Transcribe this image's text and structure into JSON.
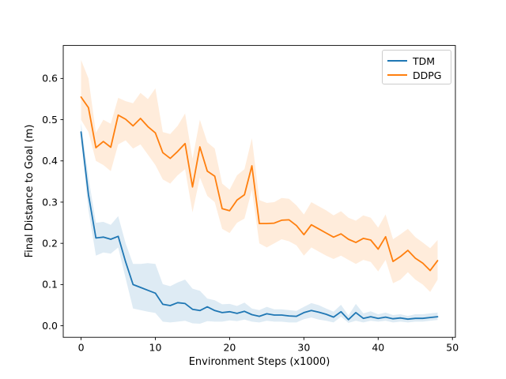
{
  "figure": {
    "background": "#ffffff"
  },
  "legend": {
    "position": "upper right",
    "items": [
      {
        "label": "TDM",
        "color": "#1f77b4"
      },
      {
        "label": "DDPG",
        "color": "#ff7f0e"
      }
    ]
  },
  "chart_data": {
    "type": "line",
    "title": "",
    "xlabel": "Environment Steps (x1000)",
    "ylabel": "Final Distance to Goal (m)",
    "grid": false,
    "legend_position": "upper right",
    "band_alpha": 0.15,
    "xlim": [
      -2.4,
      50.4
    ],
    "ylim": [
      -0.028,
      0.68
    ],
    "x_ticks": [
      {
        "label": "0",
        "v": 0
      },
      {
        "label": "10",
        "v": 10
      },
      {
        "label": "20",
        "v": 20
      },
      {
        "label": "30",
        "v": 30
      },
      {
        "label": "40",
        "v": 40
      },
      {
        "label": "50",
        "v": 50
      }
    ],
    "y_ticks": [
      {
        "label": "0.0",
        "v": 0.0
      },
      {
        "label": "0.1",
        "v": 0.1
      },
      {
        "label": "0.2",
        "v": 0.2
      },
      {
        "label": "0.3",
        "v": 0.3
      },
      {
        "label": "0.4",
        "v": 0.4
      },
      {
        "label": "0.5",
        "v": 0.5
      },
      {
        "label": "0.6",
        "v": 0.6
      }
    ],
    "x": [
      0,
      1,
      2,
      3,
      4,
      5,
      6,
      7,
      8,
      9,
      10,
      11,
      12,
      13,
      14,
      15,
      16,
      17,
      18,
      19,
      20,
      21,
      22,
      23,
      24,
      25,
      26,
      27,
      28,
      29,
      30,
      31,
      32,
      33,
      34,
      35,
      36,
      37,
      38,
      39,
      40,
      41,
      42,
      43,
      44,
      45,
      46,
      47,
      48
    ],
    "series": [
      {
        "name": "TDM",
        "color": "#1f77b4",
        "values": [
          0.47,
          0.318,
          0.213,
          0.215,
          0.21,
          0.217,
          0.155,
          0.1,
          0.093,
          0.086,
          0.079,
          0.052,
          0.049,
          0.056,
          0.054,
          0.04,
          0.037,
          0.046,
          0.037,
          0.032,
          0.034,
          0.03,
          0.035,
          0.027,
          0.023,
          0.029,
          0.026,
          0.026,
          0.024,
          0.023,
          0.032,
          0.037,
          0.033,
          0.028,
          0.021,
          0.034,
          0.015,
          0.032,
          0.018,
          0.022,
          0.018,
          0.021,
          0.017,
          0.019,
          0.016,
          0.018,
          0.018,
          0.02,
          0.022
        ],
        "band_lo": [
          0.45,
          0.28,
          0.17,
          0.178,
          0.175,
          0.19,
          0.115,
          0.042,
          0.038,
          0.034,
          0.031,
          0.01,
          0.008,
          0.01,
          0.012,
          0.006,
          0.005,
          0.011,
          0.01,
          0.01,
          0.013,
          0.011,
          0.015,
          0.01,
          0.008,
          0.012,
          0.01,
          0.01,
          0.008,
          0.008,
          0.016,
          0.02,
          0.015,
          0.012,
          0.008,
          0.022,
          0.007,
          0.012,
          0.008,
          0.012,
          0.01,
          0.012,
          0.008,
          0.01,
          0.008,
          0.01,
          0.01,
          0.012,
          0.014
        ],
        "band_hi": [
          0.492,
          0.36,
          0.25,
          0.252,
          0.245,
          0.266,
          0.2,
          0.15,
          0.15,
          0.152,
          0.15,
          0.101,
          0.096,
          0.105,
          0.112,
          0.09,
          0.085,
          0.066,
          0.062,
          0.052,
          0.053,
          0.048,
          0.056,
          0.042,
          0.038,
          0.046,
          0.04,
          0.04,
          0.038,
          0.036,
          0.046,
          0.055,
          0.05,
          0.042,
          0.034,
          0.051,
          0.025,
          0.053,
          0.03,
          0.035,
          0.028,
          0.032,
          0.026,
          0.028,
          0.024,
          0.028,
          0.028,
          0.03,
          0.032
        ]
      },
      {
        "name": "DDPG",
        "color": "#ff7f0e",
        "values": [
          0.555,
          0.529,
          0.432,
          0.447,
          0.433,
          0.511,
          0.501,
          0.485,
          0.503,
          0.483,
          0.468,
          0.42,
          0.406,
          0.423,
          0.442,
          0.337,
          0.434,
          0.375,
          0.363,
          0.284,
          0.279,
          0.305,
          0.318,
          0.388,
          0.248,
          0.248,
          0.249,
          0.256,
          0.257,
          0.243,
          0.221,
          0.245,
          0.235,
          0.225,
          0.215,
          0.223,
          0.21,
          0.202,
          0.212,
          0.208,
          0.186,
          0.216,
          0.156,
          0.168,
          0.183,
          0.164,
          0.152,
          0.134,
          0.158
        ],
        "band_lo": [
          0.5,
          0.47,
          0.4,
          0.39,
          0.375,
          0.44,
          0.45,
          0.43,
          0.44,
          0.415,
          0.39,
          0.355,
          0.345,
          0.365,
          0.38,
          0.275,
          0.36,
          0.315,
          0.3,
          0.235,
          0.225,
          0.25,
          0.26,
          0.33,
          0.2,
          0.19,
          0.2,
          0.21,
          0.205,
          0.195,
          0.17,
          0.19,
          0.18,
          0.17,
          0.162,
          0.17,
          0.16,
          0.15,
          0.16,
          0.155,
          0.132,
          0.16,
          0.103,
          0.112,
          0.13,
          0.112,
          0.1,
          0.082,
          0.112
        ],
        "band_hi": [
          0.645,
          0.6,
          0.468,
          0.5,
          0.49,
          0.553,
          0.545,
          0.54,
          0.565,
          0.55,
          0.576,
          0.47,
          0.465,
          0.485,
          0.515,
          0.405,
          0.5,
          0.445,
          0.43,
          0.345,
          0.33,
          0.365,
          0.38,
          0.455,
          0.305,
          0.298,
          0.3,
          0.31,
          0.308,
          0.292,
          0.27,
          0.3,
          0.29,
          0.28,
          0.268,
          0.278,
          0.262,
          0.255,
          0.268,
          0.262,
          0.238,
          0.27,
          0.21,
          0.222,
          0.235,
          0.215,
          0.202,
          0.188,
          0.208
        ]
      }
    ]
  }
}
